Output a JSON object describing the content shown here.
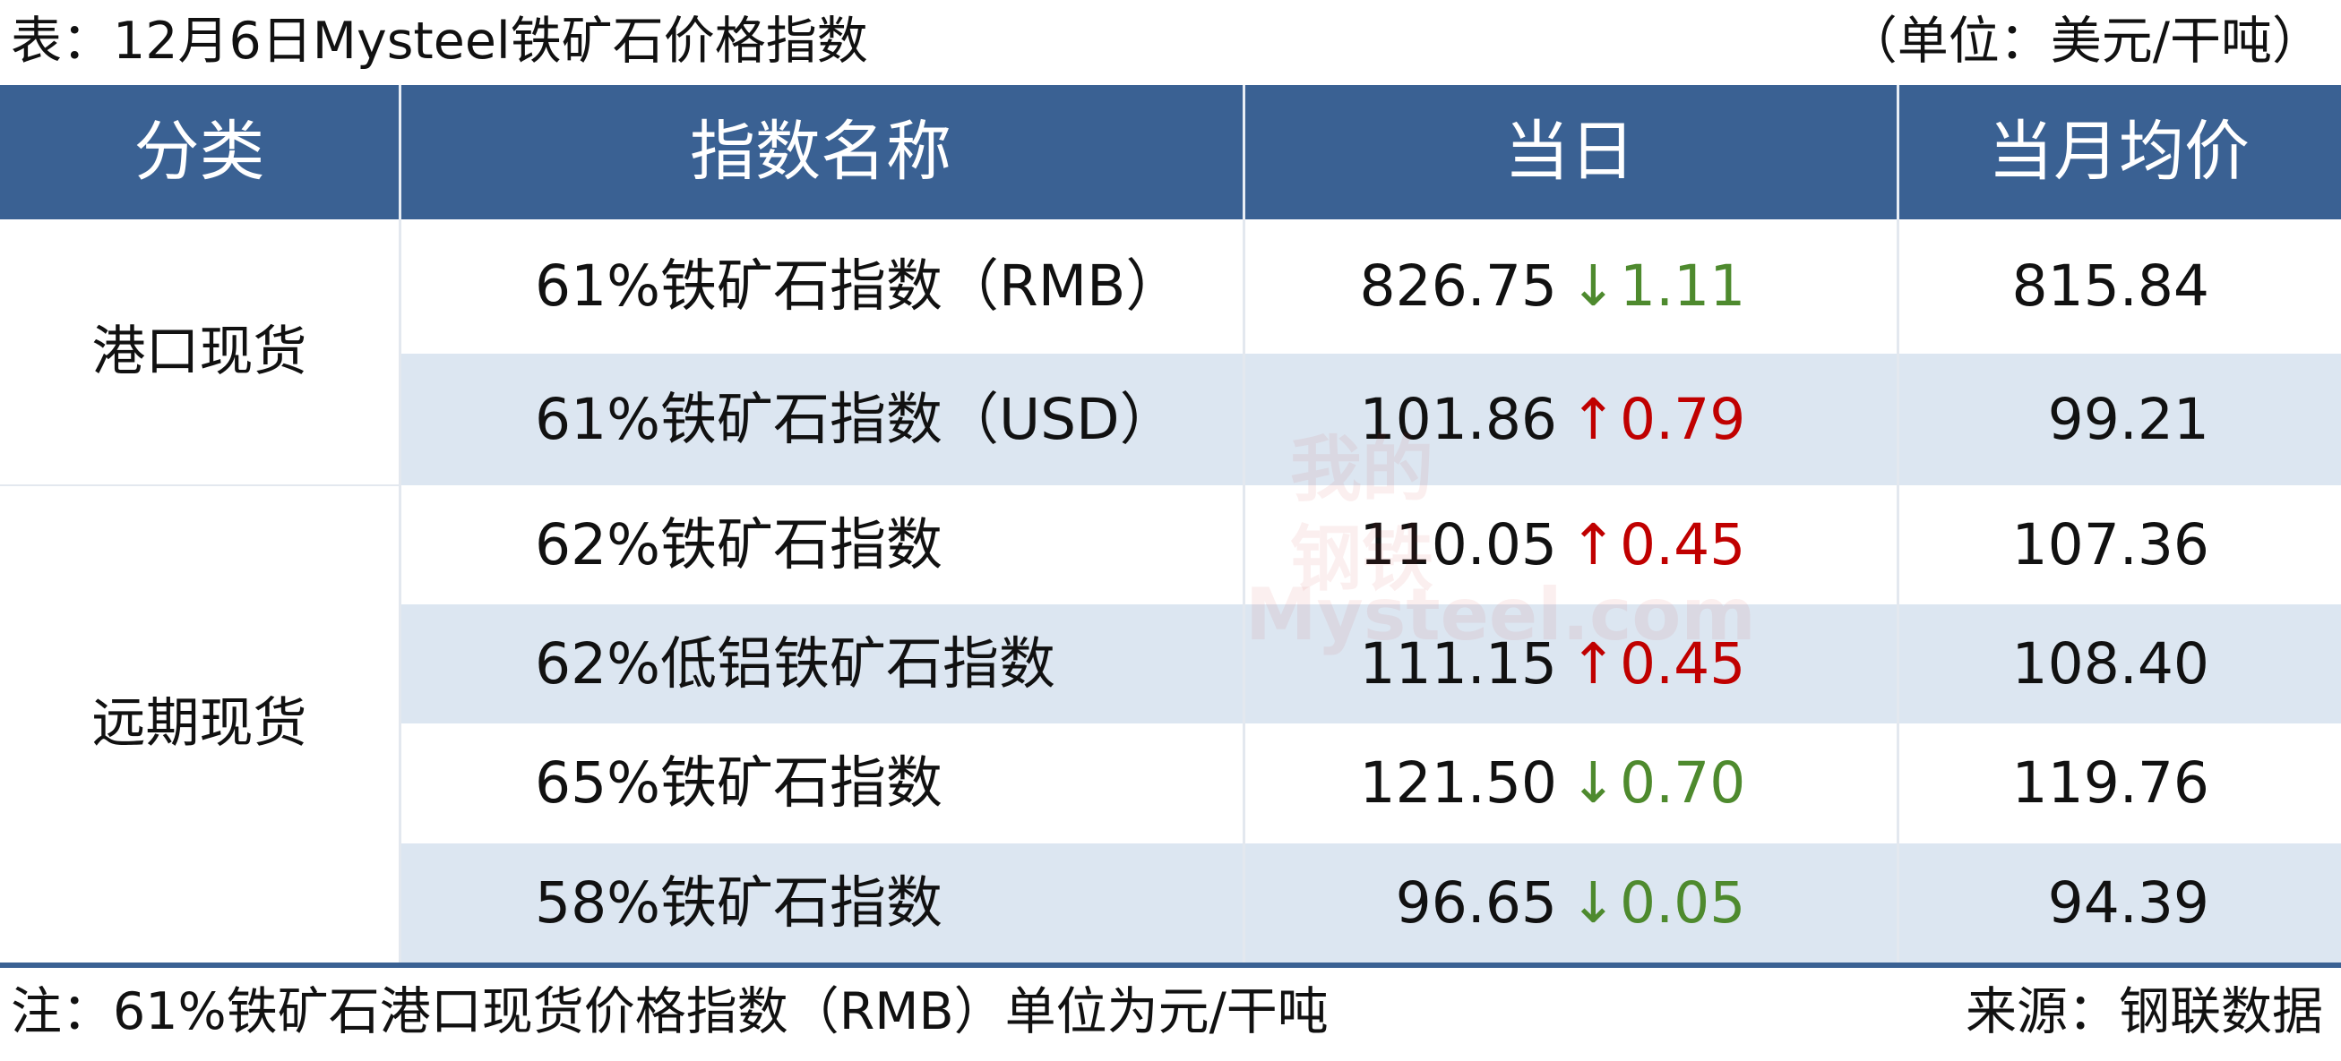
{
  "header": {
    "title": "表：12月6日Mysteel铁矿石价格指数",
    "unit": "（单位：美元/干吨）"
  },
  "table": {
    "columns": [
      "分类",
      "指数名称",
      "当日",
      "当月均价"
    ],
    "groups": [
      {
        "label": "港口现货",
        "rows": [
          {
            "name": "61%铁矿石指数（RMB）",
            "today": "826.75",
            "direction": "↓",
            "change": "1.11",
            "color": "#4e8a2e",
            "month_avg": "815.84"
          },
          {
            "name": "61%铁矿石指数（USD）",
            "today": "101.86",
            "direction": "↑",
            "change": "0.79",
            "color": "#c00000",
            "month_avg": "99.21"
          }
        ]
      },
      {
        "label": "远期现货",
        "rows": [
          {
            "name": "62%铁矿石指数",
            "today": "110.05",
            "direction": "↑",
            "change": "0.45",
            "color": "#c00000",
            "month_avg": "107.36"
          },
          {
            "name": "62%低铝铁矿石指数",
            "today": "111.15",
            "direction": "↑",
            "change": "0.45",
            "color": "#c00000",
            "month_avg": "108.40"
          },
          {
            "name": "65%铁矿石指数",
            "today": "121.50",
            "direction": "↓",
            "change": "0.70",
            "color": "#4e8a2e",
            "month_avg": "119.76"
          },
          {
            "name": "58%铁矿石指数",
            "today": "96.65",
            "direction": "↓",
            "change": "0.05",
            "color": "#4e8a2e",
            "month_avg": "94.39"
          }
        ]
      }
    ]
  },
  "watermark": [
    "我的",
    "钢铁",
    "Mysteel.com"
  ],
  "footer": {
    "note": "注：61%铁矿石港口现货价格指数（RMB）单位为元/干吨",
    "source": "来源：钢联数据"
  }
}
